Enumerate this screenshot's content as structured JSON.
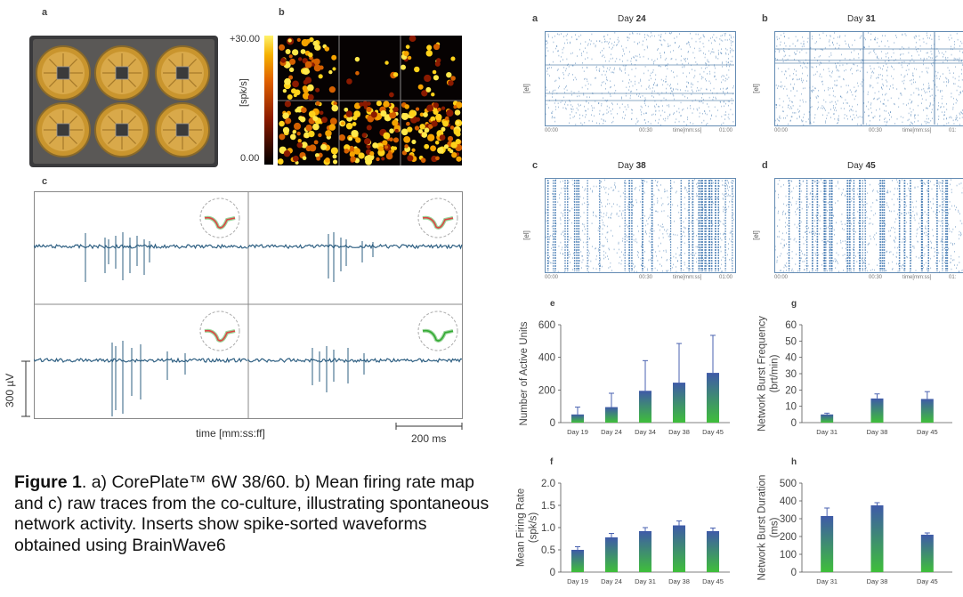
{
  "left": {
    "a": {
      "letter": "a"
    },
    "b": {
      "letter": "b",
      "cbar_max": "+30.00",
      "cbar_min": "0.00",
      "cbar_label": "[spk/s]"
    },
    "c": {
      "letter": "c",
      "scale_v": "300 µV",
      "xlabel": "time [mm:ss:ff]",
      "scale_t": "200 ms"
    }
  },
  "caption": {
    "fig": "Figure 1",
    "text": ". a) CorePlate™ 6W 38/60. b) Mean firing rate map and c) raw traces from the co-culture, illustrating spontaneous network activity. Inserts show spike-sorted waveforms obtained using BrainWave6"
  },
  "rasters": [
    {
      "letter": "a",
      "day_label": "Day ",
      "day": "24",
      "ylabel": "[el]",
      "ticks": [
        "00:00",
        "00:30",
        "time[mm:ss]",
        "01:00"
      ]
    },
    {
      "letter": "b",
      "day_label": "Day ",
      "day": "31",
      "ylabel": "[el]",
      "ticks": [
        "00:00",
        "00:30",
        "time[mm:ss]",
        "01:"
      ]
    },
    {
      "letter": "c",
      "day_label": "Day ",
      "day": "38",
      "ylabel": "[el]",
      "ticks": [
        "00:00",
        "00:30",
        "time[mm:ss]",
        "01:00"
      ]
    },
    {
      "letter": "d",
      "day_label": "Day ",
      "day": "45",
      "ylabel": "[el]",
      "ticks": [
        "00:00",
        "00:30",
        "time[mm:ss]",
        "01:"
      ]
    }
  ],
  "chart_data": [
    {
      "panel": "e",
      "type": "bar",
      "ylabel": "Number of Active Units",
      "categories": [
        "Day 19",
        "Day 24",
        "Day 34",
        "Day 38",
        "Day 45"
      ],
      "values": [
        50,
        95,
        195,
        245,
        305
      ],
      "errors": [
        45,
        85,
        185,
        240,
        230
      ],
      "ylim": [
        0,
        600
      ],
      "yticks": [
        "0",
        "200",
        "400",
        "600"
      ]
    },
    {
      "panel": "g",
      "type": "bar",
      "ylabel": "Network Burst Frequency (brt/min)",
      "categories": [
        "Day 31",
        "Day 38",
        "Day 45"
      ],
      "values": [
        5,
        14.8,
        14.5
      ],
      "errors": [
        0.8,
        2.8,
        4.5
      ],
      "ylim": [
        0,
        60
      ],
      "yticks": [
        "0",
        "10",
        "20",
        "30",
        "40",
        "50",
        "60"
      ]
    },
    {
      "panel": "f",
      "type": "bar",
      "ylabel": "Mean Firing Rate (spk/s)",
      "categories": [
        "Day 19",
        "Day 24",
        "Day 31",
        "Day 38",
        "Day 45"
      ],
      "values": [
        0.5,
        0.78,
        0.92,
        1.05,
        0.92
      ],
      "errors": [
        0.07,
        0.09,
        0.08,
        0.1,
        0.07
      ],
      "ylim": [
        0,
        2.0
      ],
      "yticks": [
        "0",
        "0.5",
        "1.0",
        "1.5",
        "2.0"
      ]
    },
    {
      "panel": "h",
      "type": "bar",
      "ylabel": "Network Burst Duration (ms)",
      "categories": [
        "Day 31",
        "Day 38",
        "Day 45"
      ],
      "values": [
        315,
        375,
        210
      ],
      "errors": [
        45,
        15,
        10
      ],
      "ylim": [
        0,
        500
      ],
      "yticks": [
        "0",
        "100",
        "200",
        "300",
        "400",
        "500"
      ]
    }
  ]
}
